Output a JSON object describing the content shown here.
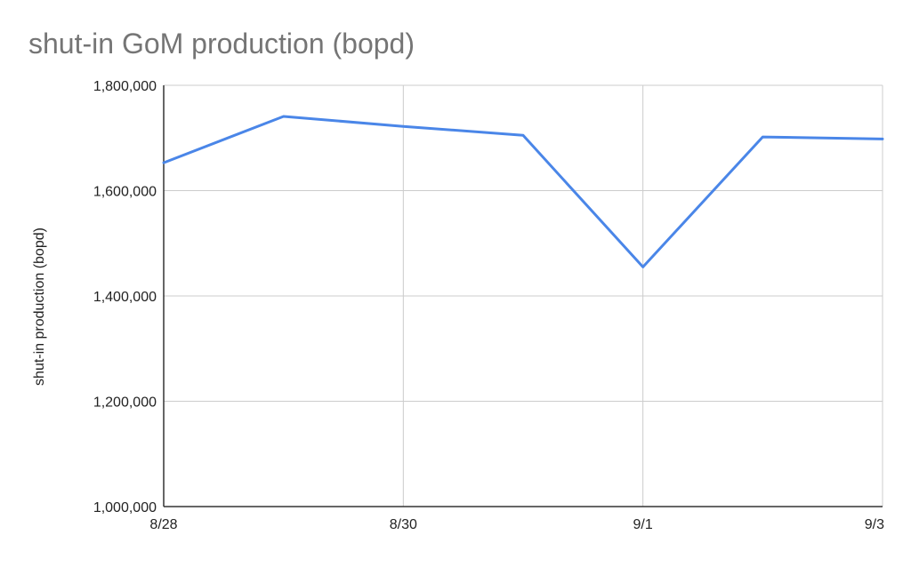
{
  "chart_data": {
    "type": "line",
    "title": "shut-in GoM production (bopd)",
    "xlabel": "",
    "ylabel": "shut-in production (bopd)",
    "x_ticks": [
      "8/28",
      "8/30",
      "9/1",
      "9/3"
    ],
    "x_tick_positions": [
      0,
      2,
      4,
      6
    ],
    "x_range": [
      0,
      6
    ],
    "ylim": [
      1000000,
      1800000
    ],
    "y_ticks": [
      1000000,
      1200000,
      1400000,
      1600000,
      1800000
    ],
    "y_tick_labels": [
      "1,000,000",
      "1,200,000",
      "1,400,000",
      "1,600,000",
      "1,800,000"
    ],
    "grid": true,
    "legend": "none",
    "series": [
      {
        "color": "#4a86e8",
        "x": [
          0,
          1,
          2,
          3,
          4,
          5,
          6
        ],
        "values": [
          1653000,
          1741000,
          1722000,
          1705000,
          1455000,
          1702000,
          1698000
        ]
      }
    ]
  }
}
